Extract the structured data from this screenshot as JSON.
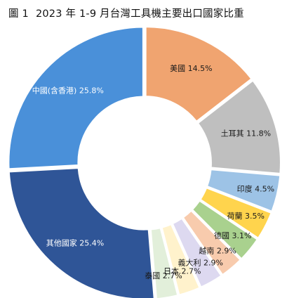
{
  "figure_label": "圖 1",
  "title": "2023 年 1-9 月台灣工具機主要出口國家比重",
  "chart_data": {
    "type": "donut",
    "title": "2023 年 1-9 月台灣工具機主要出口國家比重",
    "series": [
      {
        "name": "美國",
        "value": 14.5,
        "label": "美國 14.5%",
        "color": "#F0A470"
      },
      {
        "name": "土耳其",
        "value": 11.8,
        "label": "土耳其 11.8%",
        "color": "#BFBFBF"
      },
      {
        "name": "印度",
        "value": 4.5,
        "label": "印度 4.5%",
        "color": "#9DC3E6"
      },
      {
        "name": "荷蘭",
        "value": 3.5,
        "label": "荷蘭 3.5%",
        "color": "#FFD44D"
      },
      {
        "name": "德國",
        "value": 3.1,
        "label": "德國 3.1%",
        "color": "#A9D18E"
      },
      {
        "name": "越南",
        "value": 2.9,
        "label": "越南 2.9%",
        "color": "#F8CBAD"
      },
      {
        "name": "義大利",
        "value": 2.9,
        "label": "義大利 2.9%",
        "color": "#DDD9F0"
      },
      {
        "name": "日本",
        "value": 2.7,
        "label": "日本 2.7%",
        "color": "#FFF2CC"
      },
      {
        "name": "泰國",
        "value": 2.7,
        "label": "泰國 2.7%",
        "color": "#E2EFDA"
      },
      {
        "name": "其他國家",
        "value": 25.4,
        "label": "其他國家 25.4%",
        "color": "#2F5597"
      },
      {
        "name": "中國(含香港)",
        "value": 25.8,
        "label": "中國(含香港) 25.8%",
        "color": "#4A90D9"
      }
    ],
    "legend": "none",
    "data_labels": "inside"
  }
}
